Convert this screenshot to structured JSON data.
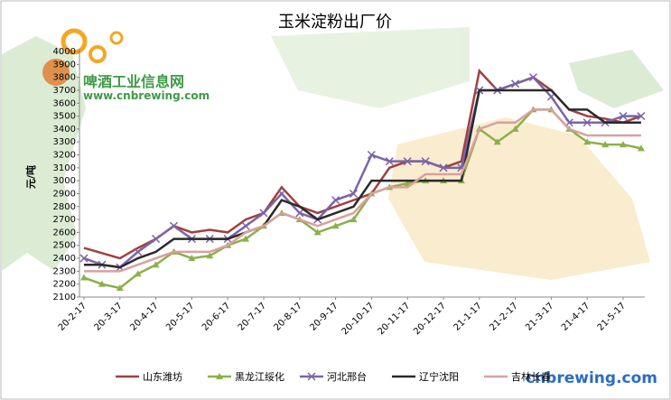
{
  "chart_data": {
    "type": "line",
    "title": "玉米淀粉出厂价",
    "y_label": "元/吨",
    "categories": [
      "20-2-17",
      null,
      "20-3-17",
      null,
      "20-4-17",
      null,
      "20-5-17",
      null,
      "20-6-17",
      null,
      "20-7-17",
      null,
      "20-8-17",
      null,
      "20-9-17",
      null,
      "20-10-17",
      null,
      "20-11-17",
      null,
      "20-12-17",
      null,
      "21-1-17",
      null,
      "21-2-17",
      null,
      "21-3-17",
      null,
      "21-4-17",
      null,
      "21-5-17",
      null
    ],
    "series": [
      {
        "name": "山东潍坊",
        "color": "#a0403e",
        "marker": "none",
        "values": [
          2480,
          2440,
          2400,
          2480,
          2550,
          2650,
          2600,
          2620,
          2600,
          2700,
          2750,
          2950,
          2800,
          2750,
          2800,
          2850,
          2900,
          3100,
          3150,
          3150,
          3100,
          3150,
          3850,
          3700,
          3750,
          3800,
          3700,
          3550,
          3500,
          3480,
          3450,
          3500
        ]
      },
      {
        "name": "黑龙江绥化",
        "color": "#8cb04a",
        "marker": "triangle",
        "values": [
          2250,
          2200,
          2170,
          2280,
          2350,
          2450,
          2400,
          2420,
          2500,
          2550,
          2650,
          2750,
          2700,
          2600,
          2650,
          2700,
          2900,
          2950,
          2980,
          3000,
          3000,
          3000,
          3400,
          3300,
          3400,
          3550,
          3550,
          3400,
          3300,
          3280,
          3280,
          3250
        ]
      },
      {
        "name": "河北邢台",
        "color": "#7b64a8",
        "marker": "x",
        "values": [
          2400,
          2350,
          2330,
          2450,
          2550,
          2650,
          2550,
          2550,
          2550,
          2650,
          2750,
          2900,
          2750,
          2700,
          2850,
          2900,
          3200,
          3150,
          3150,
          3150,
          3100,
          3100,
          3700,
          3700,
          3750,
          3800,
          3650,
          3450,
          3450,
          3450,
          3500,
          3500
        ]
      },
      {
        "name": "辽宁沈阳",
        "color": "#2a2a2a",
        "marker": "none",
        "values": [
          2350,
          2350,
          2330,
          2400,
          2450,
          2550,
          2550,
          2550,
          2550,
          2600,
          2650,
          2850,
          2800,
          2700,
          2750,
          2800,
          3000,
          3000,
          3000,
          3000,
          3000,
          3000,
          3700,
          3700,
          3700,
          3700,
          3700,
          3550,
          3550,
          3450,
          3450,
          3450
        ]
      },
      {
        "name": "吉林长春",
        "color": "#d9a0a0",
        "marker": "none",
        "values": [
          2300,
          2300,
          2300,
          2350,
          2400,
          2450,
          2450,
          2450,
          2500,
          2600,
          2650,
          2750,
          2700,
          2650,
          2700,
          2750,
          2900,
          2950,
          2950,
          3050,
          3050,
          3050,
          3400,
          3450,
          3450,
          3550,
          3550,
          3400,
          3350,
          3350,
          3350,
          3350
        ]
      }
    ],
    "ylim": [
      2100,
      4000
    ],
    "yticks": [
      2100,
      2200,
      2300,
      2400,
      2500,
      2600,
      2700,
      2800,
      2900,
      3000,
      3100,
      3200,
      3300,
      3400,
      3500,
      3600,
      3700,
      3800,
      3900,
      4000
    ],
    "grid": false,
    "legend": "bottom"
  },
  "watermark": {
    "site_name": "啤酒工业信息网",
    "url": "www.cnbrewing.com",
    "corner_mark": "cnbrewing.com"
  }
}
